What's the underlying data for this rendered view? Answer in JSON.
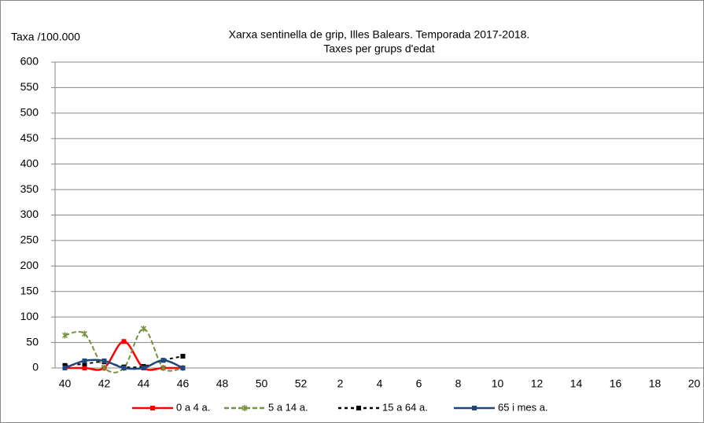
{
  "chart_data": {
    "type": "line",
    "title": "Xarxa sentinella de grip, Illes Balears. Temporada 2017-2018.",
    "subtitle": "Taxes per grups d'edat",
    "y_label": "Taxa /100.000",
    "categories": [
      "40",
      null,
      "42",
      null,
      "44",
      null,
      "46",
      null,
      "48",
      null,
      "50",
      null,
      "52",
      null,
      "2",
      null,
      "4",
      null,
      "6",
      null,
      "8",
      null,
      "10",
      null,
      "12",
      null,
      "14",
      null,
      "16",
      null,
      "18",
      null,
      "20"
    ],
    "ylim": [
      0,
      600
    ],
    "yticks": [
      0,
      50,
      100,
      150,
      200,
      250,
      300,
      350,
      400,
      450,
      500,
      550,
      600
    ],
    "grid": true,
    "legend": "bottom",
    "series": [
      {
        "name": "0 a 4 a.",
        "color": "#ff0000",
        "dash": false,
        "marker": "square",
        "values": [
          0,
          0,
          0,
          52,
          0,
          0,
          0,
          null,
          null,
          null,
          null,
          null,
          null,
          null,
          null,
          null,
          null,
          null,
          null,
          null,
          null,
          null,
          null,
          null,
          null,
          null,
          null,
          null,
          null,
          null,
          null,
          null,
          null
        ]
      },
      {
        "name": "5 a 14 a.",
        "color": "#77933c",
        "dash": true,
        "marker": "star",
        "values": [
          64,
          67,
          0,
          0,
          77,
          0,
          0,
          null,
          null,
          null,
          null,
          null,
          null,
          null,
          null,
          null,
          null,
          null,
          null,
          null,
          null,
          null,
          null,
          null,
          null,
          null,
          null,
          null,
          null,
          null,
          null,
          null,
          null
        ]
      },
      {
        "name": "15 a 64 a.",
        "color": "#000000",
        "dash": true,
        "marker": "square",
        "values": [
          5,
          8,
          12,
          2,
          3,
          15,
          23,
          null,
          null,
          null,
          null,
          null,
          null,
          null,
          null,
          null,
          null,
          null,
          null,
          null,
          null,
          null,
          null,
          null,
          null,
          null,
          null,
          null,
          null,
          null,
          null,
          null,
          null
        ]
      },
      {
        "name": "65 i mes a.",
        "color": "#1f497d",
        "dash": false,
        "marker": "square",
        "values": [
          0,
          14,
          14,
          0,
          0,
          15,
          0,
          null,
          null,
          null,
          null,
          null,
          null,
          null,
          null,
          null,
          null,
          null,
          null,
          null,
          null,
          null,
          null,
          null,
          null,
          null,
          null,
          null,
          null,
          null,
          null,
          null,
          null
        ]
      }
    ]
  }
}
